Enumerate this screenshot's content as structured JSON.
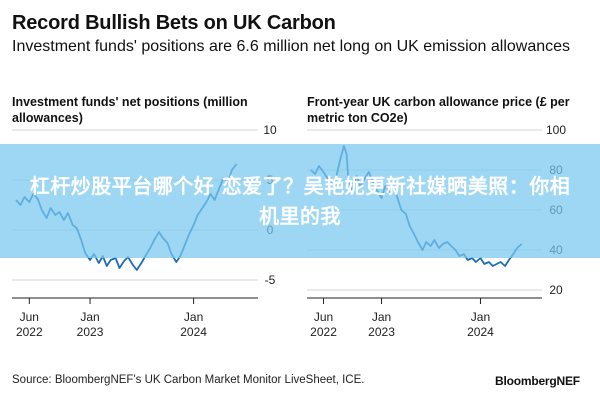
{
  "header": {
    "title": "Record Bullish Bets on UK Carbon",
    "subtitle": "Investment funds' positions are 6.6 million net long on UK emission allowances"
  },
  "footer": {
    "source": "Source: BloombergNEF's UK Carbon Market Monitor LiveSheet, ICE.",
    "brand": "BloombergNEF"
  },
  "overlay": {
    "text": "杠杆炒股平台哪个好 恋爱了？吴艳妮更新社媒晒美照：你相机里的我"
  },
  "colors": {
    "series": "#1d6cb5",
    "gridline": "#d6d6d6",
    "axis": "#222222",
    "overlay": "#78c8f0"
  },
  "chart_data": [
    {
      "type": "line",
      "title": "Investment funds' net positions (million allowances)",
      "xlabel": "",
      "ylabel": "",
      "x_ticks": [
        {
          "label": "Jun\n2022",
          "date": "2022-06-01"
        },
        {
          "label": "Jan\n2023",
          "date": "2023-01-01"
        },
        {
          "label": "Jan\n2024",
          "date": "2024-01-01"
        }
      ],
      "y_ticks": [
        10,
        5,
        0,
        -5
      ],
      "xlim": [
        "2022-04-01",
        "2024-08-15"
      ],
      "ylim": [
        -6,
        10
      ],
      "grid": true,
      "axis_position": "right",
      "series": [
        {
          "values": [
            {
              "x": "2022-04-15",
              "y": 3.0
            },
            {
              "x": "2022-05-01",
              "y": 2.5
            },
            {
              "x": "2022-05-15",
              "y": 3.3
            },
            {
              "x": "2022-06-01",
              "y": 2.8
            },
            {
              "x": "2022-06-15",
              "y": 3.6
            },
            {
              "x": "2022-07-01",
              "y": 3.1
            },
            {
              "x": "2022-07-15",
              "y": 2.0
            },
            {
              "x": "2022-08-01",
              "y": 1.2
            },
            {
              "x": "2022-08-15",
              "y": 2.2
            },
            {
              "x": "2022-09-01",
              "y": 1.5
            },
            {
              "x": "2022-09-15",
              "y": 1.8
            },
            {
              "x": "2022-10-01",
              "y": 1.0
            },
            {
              "x": "2022-10-15",
              "y": 1.7
            },
            {
              "x": "2022-11-01",
              "y": 0.5
            },
            {
              "x": "2022-11-15",
              "y": 0.2
            },
            {
              "x": "2022-12-01",
              "y": -1.0
            },
            {
              "x": "2022-12-15",
              "y": -2.3
            },
            {
              "x": "2023-01-01",
              "y": -3.0
            },
            {
              "x": "2023-01-15",
              "y": -2.4
            },
            {
              "x": "2023-02-01",
              "y": -3.3
            },
            {
              "x": "2023-02-15",
              "y": -2.6
            },
            {
              "x": "2023-03-01",
              "y": -3.6
            },
            {
              "x": "2023-03-15",
              "y": -3.0
            },
            {
              "x": "2023-04-01",
              "y": -2.8
            },
            {
              "x": "2023-04-15",
              "y": -3.8
            },
            {
              "x": "2023-05-01",
              "y": -3.1
            },
            {
              "x": "2023-05-15",
              "y": -2.7
            },
            {
              "x": "2023-06-01",
              "y": -3.5
            },
            {
              "x": "2023-06-15",
              "y": -4.0
            },
            {
              "x": "2023-07-01",
              "y": -3.3
            },
            {
              "x": "2023-07-15",
              "y": -2.6
            },
            {
              "x": "2023-08-01",
              "y": -1.8
            },
            {
              "x": "2023-08-15",
              "y": -1.0
            },
            {
              "x": "2023-09-01",
              "y": -0.2
            },
            {
              "x": "2023-09-15",
              "y": -0.8
            },
            {
              "x": "2023-10-01",
              "y": -1.3
            },
            {
              "x": "2023-10-15",
              "y": -2.4
            },
            {
              "x": "2023-11-01",
              "y": -3.2
            },
            {
              "x": "2023-11-15",
              "y": -2.6
            },
            {
              "x": "2023-12-01",
              "y": -1.5
            },
            {
              "x": "2023-12-15",
              "y": -0.5
            },
            {
              "x": "2024-01-01",
              "y": 0.5
            },
            {
              "x": "2024-01-15",
              "y": 1.5
            },
            {
              "x": "2024-02-01",
              "y": 2.2
            },
            {
              "x": "2024-02-15",
              "y": 2.8
            },
            {
              "x": "2024-03-01",
              "y": 3.6
            },
            {
              "x": "2024-03-15",
              "y": 3.0
            },
            {
              "x": "2024-04-01",
              "y": 4.2
            },
            {
              "x": "2024-04-15",
              "y": 5.2
            },
            {
              "x": "2024-05-01",
              "y": 4.8
            },
            {
              "x": "2024-05-15",
              "y": 6.0
            },
            {
              "x": "2024-06-01",
              "y": 6.6
            }
          ]
        }
      ]
    },
    {
      "type": "line",
      "title": "Front-year UK carbon allowance price (£ per metric ton CO2e)",
      "xlabel": "",
      "ylabel": "",
      "x_ticks": [
        {
          "label": "Jun\n2022",
          "date": "2022-06-01"
        },
        {
          "label": "Jan\n2023",
          "date": "2023-01-01"
        },
        {
          "label": "Jan\n2024",
          "date": "2024-01-01"
        }
      ],
      "y_ticks": [
        100,
        80,
        60,
        40,
        20
      ],
      "xlim": [
        "2022-04-01",
        "2024-08-15"
      ],
      "ylim": [
        20,
        100
      ],
      "grid": true,
      "axis_position": "right",
      "series": [
        {
          "values": [
            {
              "x": "2022-04-15",
              "y": 80
            },
            {
              "x": "2022-05-01",
              "y": 78
            },
            {
              "x": "2022-05-15",
              "y": 82
            },
            {
              "x": "2022-06-01",
              "y": 79
            },
            {
              "x": "2022-06-15",
              "y": 76
            },
            {
              "x": "2022-07-01",
              "y": 73
            },
            {
              "x": "2022-07-15",
              "y": 75
            },
            {
              "x": "2022-08-01",
              "y": 85
            },
            {
              "x": "2022-08-15",
              "y": 92
            },
            {
              "x": "2022-08-25",
              "y": 88
            },
            {
              "x": "2022-09-01",
              "y": 74
            },
            {
              "x": "2022-09-15",
              "y": 70
            },
            {
              "x": "2022-10-01",
              "y": 77
            },
            {
              "x": "2022-10-15",
              "y": 72
            },
            {
              "x": "2022-11-01",
              "y": 76
            },
            {
              "x": "2022-11-15",
              "y": 79
            },
            {
              "x": "2022-12-01",
              "y": 74
            },
            {
              "x": "2022-12-15",
              "y": 70
            },
            {
              "x": "2023-01-01",
              "y": 66
            },
            {
              "x": "2023-01-15",
              "y": 72
            },
            {
              "x": "2023-02-01",
              "y": 69
            },
            {
              "x": "2023-02-15",
              "y": 71
            },
            {
              "x": "2023-03-01",
              "y": 66
            },
            {
              "x": "2023-03-15",
              "y": 60
            },
            {
              "x": "2023-04-01",
              "y": 58
            },
            {
              "x": "2023-04-15",
              "y": 52
            },
            {
              "x": "2023-05-01",
              "y": 48
            },
            {
              "x": "2023-05-15",
              "y": 44
            },
            {
              "x": "2023-06-01",
              "y": 40
            },
            {
              "x": "2023-06-15",
              "y": 44
            },
            {
              "x": "2023-07-01",
              "y": 42
            },
            {
              "x": "2023-07-15",
              "y": 45
            },
            {
              "x": "2023-08-01",
              "y": 41
            },
            {
              "x": "2023-08-15",
              "y": 43
            },
            {
              "x": "2023-09-01",
              "y": 44
            },
            {
              "x": "2023-09-15",
              "y": 42
            },
            {
              "x": "2023-10-01",
              "y": 40
            },
            {
              "x": "2023-10-15",
              "y": 37
            },
            {
              "x": "2023-11-01",
              "y": 38
            },
            {
              "x": "2023-11-15",
              "y": 35
            },
            {
              "x": "2023-12-01",
              "y": 36
            },
            {
              "x": "2023-12-15",
              "y": 34
            },
            {
              "x": "2024-01-01",
              "y": 36
            },
            {
              "x": "2024-01-15",
              "y": 33
            },
            {
              "x": "2024-02-01",
              "y": 34
            },
            {
              "x": "2024-02-15",
              "y": 32
            },
            {
              "x": "2024-03-01",
              "y": 33
            },
            {
              "x": "2024-03-15",
              "y": 34
            },
            {
              "x": "2024-04-01",
              "y": 32
            },
            {
              "x": "2024-04-15",
              "y": 35
            },
            {
              "x": "2024-05-01",
              "y": 38
            },
            {
              "x": "2024-05-15",
              "y": 41
            },
            {
              "x": "2024-06-01",
              "y": 43
            }
          ]
        }
      ]
    }
  ]
}
